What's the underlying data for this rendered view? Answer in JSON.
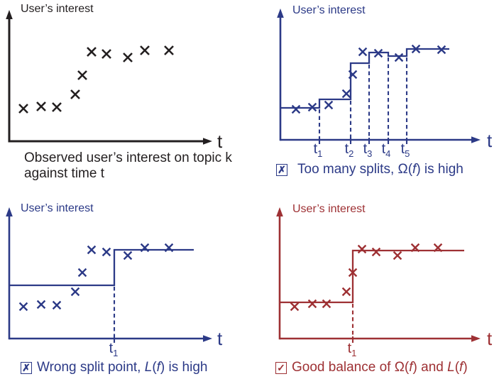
{
  "colors": {
    "ink": "#231f20",
    "navy": "#2c3a87",
    "red": "#9e3134",
    "background": "#ffffff"
  },
  "panels": [
    {
      "name": "observed",
      "color": "ink",
      "ylabel": "User’s interest",
      "xlabel": "t",
      "caption_lines": [
        "Observed user’s interest on topic k",
        "against time t"
      ],
      "tick_labels": [],
      "axis": {
        "ox": 13,
        "oy": 199,
        "xtip": 299,
        "ytip": 14
      },
      "axis_w": 3,
      "step": [],
      "dashes": [],
      "ticks": [],
      "points": [
        [
          33,
          153
        ],
        [
          58,
          150
        ],
        [
          80,
          151
        ],
        [
          106,
          133
        ],
        [
          116,
          106
        ],
        [
          129,
          73
        ],
        [
          150,
          76
        ],
        [
          180,
          81
        ],
        [
          204,
          71
        ],
        [
          238,
          71
        ]
      ],
      "mark_half": 6,
      "mark_w": 2.6
    },
    {
      "name": "too-many-splits",
      "color": "navy",
      "ylabel": "User’s interest",
      "xlabel": "t",
      "badge": "✗",
      "caption_parts": [
        {
          "text": "Too many splits, Ω(",
          "italic": false
        },
        {
          "text": "f",
          "italic": true
        },
        {
          "text": ")  is high",
          "italic": false
        }
      ],
      "tick_labels": [
        {
          "base": "t",
          "sub": "1"
        },
        {
          "base": "t",
          "sub": "2"
        },
        {
          "base": "t",
          "sub": "3"
        },
        {
          "base": "t",
          "sub": "4"
        },
        {
          "base": "t",
          "sub": "5"
        }
      ],
      "axis": {
        "ox": 395,
        "oy": 197,
        "xtip": 677,
        "ytip": 12
      },
      "axis_w": 2.6,
      "step": [
        [
          395,
          152
        ],
        [
          450,
          152
        ],
        [
          450,
          140
        ],
        [
          494,
          140
        ],
        [
          494,
          89
        ],
        [
          520,
          89
        ],
        [
          520,
          74
        ],
        [
          547,
          74
        ],
        [
          547,
          79
        ],
        [
          573,
          79
        ],
        [
          573,
          69
        ],
        [
          633,
          69
        ]
      ],
      "dashes": [
        [
          450,
          154
        ],
        [
          494,
          142
        ],
        [
          520,
          91
        ],
        [
          547,
          81
        ],
        [
          573,
          81
        ]
      ],
      "ticks": [
        450,
        494,
        520,
        547,
        573
      ],
      "points": [
        [
          417,
          154
        ],
        [
          440,
          151
        ],
        [
          463,
          148
        ],
        [
          488,
          132
        ],
        [
          497,
          105
        ],
        [
          511,
          73
        ],
        [
          533,
          75
        ],
        [
          562,
          81
        ],
        [
          586,
          69
        ],
        [
          622,
          70
        ]
      ],
      "mark_half": 5.4,
      "mark_w": 2.4
    },
    {
      "name": "wrong-split-point",
      "color": "navy",
      "ylabel": "User’s interest",
      "xlabel": "t",
      "badge": "✗",
      "caption_parts": [
        {
          "text": "Wrong split point, ",
          "italic": false
        },
        {
          "text": "L",
          "italic": true
        },
        {
          "text": "(",
          "italic": false
        },
        {
          "text": "f",
          "italic": true
        },
        {
          "text": ") is high",
          "italic": false
        }
      ],
      "tick_labels": [
        {
          "base": "t",
          "sub": "1"
        }
      ],
      "axis": {
        "ox": 13,
        "oy": 477,
        "xtip": 299,
        "ytip": 292
      },
      "axis_w": 2.6,
      "step": [
        [
          13,
          402
        ],
        [
          161,
          402
        ],
        [
          161,
          352
        ],
        [
          273,
          352
        ]
      ],
      "dashes": [
        [
          161,
          404
        ]
      ],
      "ticks": [
        161
      ],
      "points": [
        [
          33,
          432
        ],
        [
          58,
          429
        ],
        [
          80,
          430
        ],
        [
          106,
          411
        ],
        [
          116,
          384
        ],
        [
          129,
          352
        ],
        [
          150,
          355
        ],
        [
          180,
          360
        ],
        [
          204,
          349
        ],
        [
          238,
          349
        ]
      ],
      "mark_half": 5.4,
      "mark_w": 2.4
    },
    {
      "name": "good-balance",
      "color": "red",
      "ylabel": "User’s interest",
      "xlabel": "t",
      "badge": "✓",
      "caption_parts": [
        {
          "text": "Good balance of Ω(",
          "italic": false
        },
        {
          "text": "f",
          "italic": true
        },
        {
          "text": ") and ",
          "italic": false
        },
        {
          "text": "L",
          "italic": true
        },
        {
          "text": "(",
          "italic": false
        },
        {
          "text": "f",
          "italic": true
        },
        {
          "text": ")",
          "italic": false
        }
      ],
      "tick_labels": [
        {
          "base": "t",
          "sub": "1"
        }
      ],
      "axis": {
        "ox": 394,
        "oy": 477,
        "xtip": 677,
        "ytip": 292
      },
      "axis_w": 2.6,
      "step": [
        [
          394,
          426
        ],
        [
          497,
          426
        ],
        [
          497,
          353
        ],
        [
          654,
          353
        ]
      ],
      "dashes": [
        [
          497,
          428
        ]
      ],
      "ticks": [
        497
      ],
      "points": [
        [
          415,
          432
        ],
        [
          440,
          428
        ],
        [
          460,
          428
        ],
        [
          488,
          411
        ],
        [
          497,
          384
        ],
        [
          510,
          351
        ],
        [
          530,
          355
        ],
        [
          560,
          360
        ],
        [
          585,
          349
        ],
        [
          617,
          349
        ]
      ],
      "mark_half": 5.4,
      "mark_w": 2.4
    }
  ]
}
